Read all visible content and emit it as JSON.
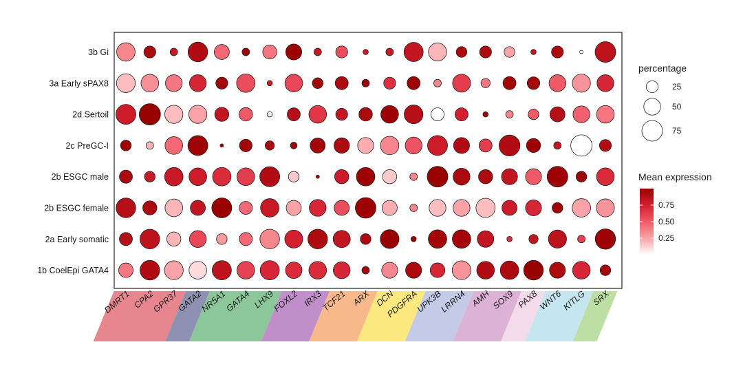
{
  "chart_data": {
    "type": "dotplot",
    "genes": [
      "DMRT1",
      "CPA2",
      "GPR37",
      "GATA2",
      "NR5A1",
      "GATA4",
      "LHX9",
      "FOXL2",
      "IRX3",
      "TCF21",
      "ARX",
      "DCN",
      "PDGFRA",
      "UPK3B",
      "LRRN4",
      "AMH",
      "SOX9",
      "PAX8",
      "WNT6",
      "KITLG",
      "SRX"
    ],
    "cell_types": [
      "3b Gi",
      "3a Early sPAX8",
      "2d Sertoil",
      "2c PreGC-I",
      "2b ESGC male",
      "2b ESGC female",
      "2a Early somatic",
      "1b CoelEpi GATA4"
    ],
    "gene_groups": [
      {
        "genes": [
          "DMRT1",
          "CPA2",
          "GPR37"
        ],
        "color": "#e8868f"
      },
      {
        "genes": [
          "GATA2"
        ],
        "color": "#8f91b3"
      },
      {
        "genes": [
          "NR5A1",
          "GATA4",
          "LHX9"
        ],
        "color": "#8cc79a"
      },
      {
        "genes": [
          "FOXL2",
          "IRX3"
        ],
        "color": "#c08fc9"
      },
      {
        "genes": [
          "TCF21",
          "ARX"
        ],
        "color": "#f7b98a"
      },
      {
        "genes": [
          "DCN",
          "PDGFRA"
        ],
        "color": "#fbe97f"
      },
      {
        "genes": [
          "UPK3B",
          "LRRN4"
        ],
        "color": "#c3cbe6"
      },
      {
        "genes": [
          "AMH",
          "SOX9"
        ],
        "color": "#dcb3d6"
      },
      {
        "genes": [
          "PAX8"
        ],
        "color": "#f3dbe9"
      },
      {
        "genes": [
          "WNT6",
          "KITLG"
        ],
        "color": "#c6e6ef"
      },
      {
        "genes": [
          "SRX"
        ],
        "color": "#bedfa4"
      }
    ],
    "percentage": [
      [
        60,
        25,
        10,
        68,
        40,
        10,
        35,
        45,
        10,
        25,
        5,
        10,
        65,
        58,
        20,
        25,
        20,
        5,
        25,
        2,
        75
      ],
      [
        62,
        55,
        50,
        50,
        25,
        60,
        5,
        55,
        20,
        30,
        10,
        25,
        30,
        10,
        57,
        15,
        30,
        28,
        50,
        58,
        50
      ],
      [
        70,
        80,
        58,
        58,
        35,
        32,
        5,
        30,
        55,
        25,
        32,
        55,
        62,
        30,
        30,
        5,
        10,
        20,
        40,
        50,
        55
      ],
      [
        20,
        10,
        55,
        70,
        2,
        28,
        15,
        8,
        40,
        42,
        45,
        60,
        50,
        70,
        45,
        30,
        77,
        35,
        10,
        80,
        25
      ],
      [
        30,
        20,
        60,
        55,
        60,
        55,
        70,
        20,
        2,
        35,
        60,
        35,
        10,
        75,
        50,
        35,
        45,
        45,
        75,
        20,
        55
      ],
      [
        68,
        35,
        55,
        40,
        70,
        30,
        60,
        40,
        50,
        40,
        75,
        40,
        10,
        50,
        50,
        65,
        40,
        45,
        20,
        60,
        57
      ],
      [
        30,
        68,
        35,
        50,
        20,
        30,
        68,
        57,
        68,
        52,
        20,
        62,
        5,
        60,
        60,
        48,
        5,
        15,
        58,
        10,
        73
      ],
      [
        37,
        68,
        62,
        55,
        65,
        55,
        65,
        48,
        55,
        50,
        10,
        45,
        45,
        38,
        62,
        55,
        60,
        68,
        45,
        55,
        20
      ]
    ],
    "expression": [
      [
        0.35,
        0.92,
        0.8,
        0.9,
        0.45,
        0.98,
        0.4,
        0.98,
        0.8,
        0.55,
        0.8,
        0.8,
        0.82,
        0.2,
        0.92,
        0.92,
        0.25,
        0.82,
        0.92,
        0.02,
        0.85
      ],
      [
        0.18,
        0.32,
        0.4,
        0.72,
        0.95,
        0.55,
        0.78,
        0.58,
        0.95,
        0.92,
        0.98,
        0.68,
        0.98,
        0.35,
        0.62,
        0.4,
        0.95,
        0.95,
        0.5,
        0.3,
        0.72
      ],
      [
        0.78,
        1.0,
        0.18,
        0.25,
        0.82,
        0.5,
        0.05,
        0.88,
        0.65,
        0.82,
        0.92,
        0.98,
        0.88,
        0.0,
        0.75,
        0.98,
        0.35,
        0.5,
        0.88,
        0.48,
        0.4
      ],
      [
        0.98,
        0.2,
        0.45,
        0.98,
        0.98,
        0.95,
        0.92,
        0.98,
        0.95,
        0.92,
        0.22,
        0.35,
        0.52,
        0.78,
        0.9,
        0.62,
        0.9,
        0.98,
        0.82,
        0.0,
        0.9
      ],
      [
        0.92,
        0.8,
        0.8,
        0.78,
        0.7,
        0.62,
        0.9,
        0.15,
        0.9,
        0.78,
        0.98,
        0.15,
        0.35,
        1.0,
        0.92,
        0.92,
        0.82,
        0.5,
        0.98,
        0.98,
        0.7
      ],
      [
        0.88,
        0.92,
        0.2,
        0.82,
        1.0,
        0.45,
        0.8,
        0.25,
        0.72,
        0.55,
        0.98,
        0.22,
        0.35,
        0.18,
        0.25,
        0.18,
        0.78,
        0.72,
        0.98,
        0.25,
        0.3
      ],
      [
        0.88,
        0.85,
        0.2,
        0.58,
        0.28,
        0.45,
        0.35,
        0.75,
        0.92,
        0.82,
        0.92,
        1.0,
        0.98,
        0.95,
        0.95,
        0.82,
        0.68,
        0.82,
        0.85,
        0.6,
        0.98
      ],
      [
        0.4,
        0.9,
        0.25,
        0.1,
        0.85,
        0.6,
        0.72,
        0.7,
        0.7,
        0.72,
        0.95,
        0.35,
        0.92,
        0.72,
        0.3,
        0.9,
        0.92,
        1.0,
        0.92,
        0.72,
        0.95
      ]
    ],
    "size_legend": {
      "title": "percentage",
      "values": [
        25,
        50,
        75
      ],
      "labels": [
        "25",
        "50",
        "75"
      ]
    },
    "color_legend": {
      "title": "Mean expression",
      "ticks": [
        0.25,
        0.5,
        0.75
      ],
      "labels": [
        "0.25",
        "0.50",
        "0.75"
      ],
      "low_color": "#ffffff",
      "high_color": "#990000"
    }
  }
}
